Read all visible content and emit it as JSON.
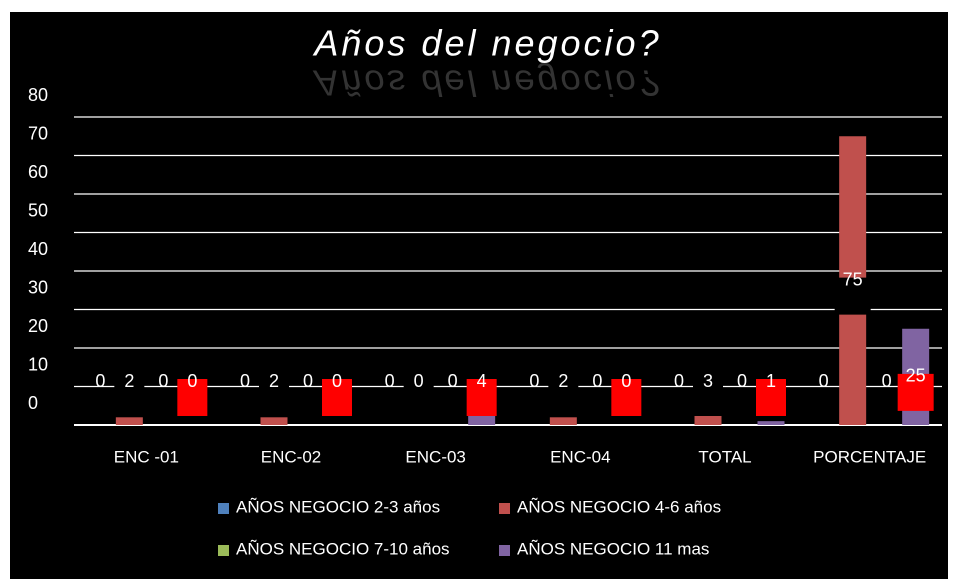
{
  "chart_data": {
    "type": "bar",
    "title": "Años del negocio?",
    "categories": [
      "ENC -01",
      "ENC-02",
      "ENC-03",
      "ENC-04",
      "TOTAL",
      "PORCENTAJE"
    ],
    "series": [
      {
        "name": "AÑOS NEGOCIO 2-3 años",
        "color": "#4f81bd",
        "values": [
          0,
          0,
          0,
          0,
          0,
          0
        ]
      },
      {
        "name": "AÑOS NEGOCIO 4-6 años",
        "color": "#c0504d",
        "values": [
          2,
          2,
          0,
          2,
          3,
          75
        ],
        "label_background": "#000000"
      },
      {
        "name": "AÑOS NEGOCIO 7-10 años",
        "color": "#9bbb59",
        "values": [
          0,
          0,
          0,
          0,
          0,
          0
        ]
      },
      {
        "name": "AÑOS NEGOCIO 11 mas",
        "color": "#8064a2",
        "values": [
          0,
          0,
          4,
          0,
          1,
          25
        ],
        "label_background": "#ff0000"
      }
    ],
    "ylim": [
      0,
      80
    ],
    "yticks": [
      0,
      10,
      20,
      30,
      40,
      50,
      60,
      70,
      80
    ],
    "grid": true,
    "legend": "bottom"
  }
}
